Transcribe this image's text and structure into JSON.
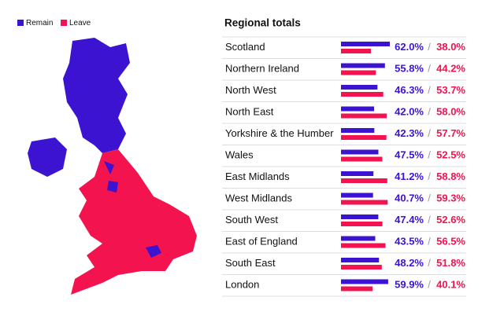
{
  "chart_data": {
    "type": "bar",
    "orientation": "horizontal",
    "title": "Regional totals",
    "categories": [
      "Scotland",
      "Northern Ireland",
      "North West",
      "North East",
      "Yorkshire & the Humber",
      "Wales",
      "East Midlands",
      "West Midlands",
      "South West",
      "East of England",
      "South East",
      "London"
    ],
    "series": [
      {
        "name": "Remain",
        "color": "#3c13d1",
        "values": [
          62.0,
          55.8,
          46.3,
          42.0,
          42.3,
          47.5,
          41.2,
          40.7,
          47.4,
          43.5,
          48.2,
          59.9
        ],
        "value_labels": [
          "62.0%",
          "55.8%",
          "46.3%",
          "42.0%",
          "42.3%",
          "47.5%",
          "41.2%",
          "40.7%",
          "47.4%",
          "43.5%",
          "48.2%",
          "59.9%"
        ]
      },
      {
        "name": "Leave",
        "color": "#f2134f",
        "values": [
          38.0,
          44.2,
          53.7,
          58.0,
          57.7,
          52.5,
          58.8,
          59.3,
          52.6,
          56.5,
          51.8,
          40.1
        ],
        "value_labels": [
          "38.0%",
          "44.2%",
          "53.7%",
          "58.0%",
          "57.7%",
          "52.5%",
          "58.8%",
          "59.3%",
          "52.6%",
          "56.5%",
          "51.8%",
          "40.1%"
        ]
      }
    ],
    "separator": "/",
    "xlim": [
      0,
      100
    ]
  }
}
